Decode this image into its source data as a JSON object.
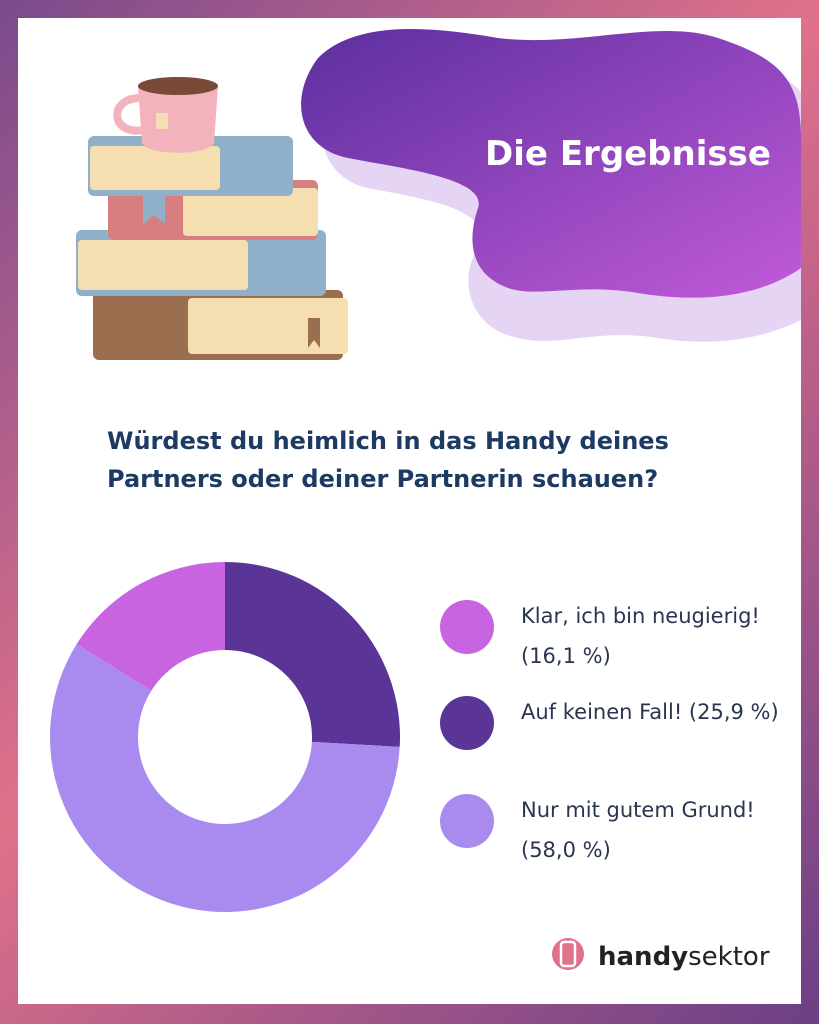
{
  "title": "Die Ergebnisse",
  "chart_data": {
    "type": "pie",
    "title": "Würdest du heimlich in das Handy deines Partners oder deiner Partnerin schauen?",
    "categories": [
      "Klar, ich bin neugierig!",
      "Auf keinen Fall!",
      "Nur mit gutem Grund!"
    ],
    "values": [
      16.1,
      25.9,
      58.0
    ],
    "value_labels": [
      "(16,1 %)",
      "(25,9 %)",
      "(58,0 %)"
    ],
    "colors": [
      "#c964e0",
      "#5a3496",
      "#a98bef"
    ],
    "donut": true
  },
  "logo": {
    "bold": "handy",
    "regular": "sektor"
  }
}
